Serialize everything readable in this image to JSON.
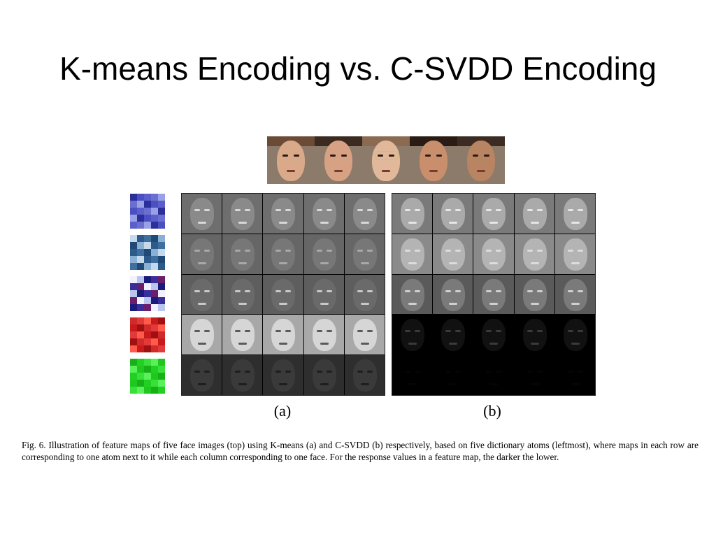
{
  "slide": {
    "title": "K-means Encoding vs. C-SVDD Encoding"
  },
  "figure": {
    "faces": [
      {
        "skin": "#d9a98a",
        "hair": "#6b4a36",
        "glasses": false
      },
      {
        "skin": "#d6a283",
        "hair": "#3a2a20",
        "glasses": false
      },
      {
        "skin": "#e1b89a",
        "hair": "#8a6a50",
        "glasses": true
      },
      {
        "skin": "#c98f6c",
        "hair": "#2a1c14",
        "glasses": false
      },
      {
        "skin": "#b98462",
        "hair": "#3b2b22",
        "glasses": false
      }
    ],
    "atoms": [
      {
        "colors": [
          "#2b2f9a",
          "#6a6fd0",
          "#4a50c0",
          "#9aa0e6",
          "#5a5fcc"
        ]
      },
      {
        "colors": [
          "#2c5a8a",
          "#8ab0d4",
          "#3f6f9e",
          "#c6d9ec",
          "#1f4a78"
        ]
      },
      {
        "colors": [
          "#1a1a7a",
          "#f2f2ff",
          "#3a2f9a",
          "#b9c6ee",
          "#6a1f6a"
        ]
      },
      {
        "colors": [
          "#c81a1a",
          "#e23a3a",
          "#a01010",
          "#ff5a4a",
          "#d02a2a"
        ]
      },
      {
        "colors": [
          "#1ec81e",
          "#3ae03a",
          "#18b018",
          "#5af05a",
          "#22d022"
        ]
      }
    ],
    "panel_a_rows": [
      {
        "bg": "#6e6e6e",
        "face": "#8a8a8a",
        "feat": "#d8d8d8"
      },
      {
        "bg": "#666666",
        "face": "#777777",
        "feat": "#a8a8a8"
      },
      {
        "bg": "#5e5e5e",
        "face": "#6a6a6a",
        "feat": "#c8c8c8"
      },
      {
        "bg": "#a8a8a8",
        "face": "#d6d6d6",
        "feat": "#5a5a5a"
      },
      {
        "bg": "#2e2e2e",
        "face": "#3a3a3a",
        "feat": "#1e1e1e"
      }
    ],
    "panel_b_rows": [
      {
        "bg": "#7a7a7a",
        "face": "#aaaaaa",
        "feat": "#e6e6e6"
      },
      {
        "bg": "#8a8a8a",
        "face": "#b4b4b4",
        "feat": "#dcdcdc"
      },
      {
        "bg": "#5a5a5a",
        "face": "#7a7a7a",
        "feat": "#cfcfcf"
      },
      {
        "bg": "#000000",
        "face": "#111111",
        "feat": "#3a3a3a"
      },
      {
        "bg": "#000000",
        "face": "#000000",
        "feat": "#050505"
      }
    ],
    "label_a": "(a)",
    "label_b": "(b)",
    "caption": "Fig. 6.   Illustration of feature maps of five face images (top) using K-means (a) and C-SVDD (b) respectively, based on five dictionary atoms (leftmost), where maps in each row are corresponding to one atom next to it while each column corresponding to one face. For the response values in a feature map, the darker the lower."
  }
}
